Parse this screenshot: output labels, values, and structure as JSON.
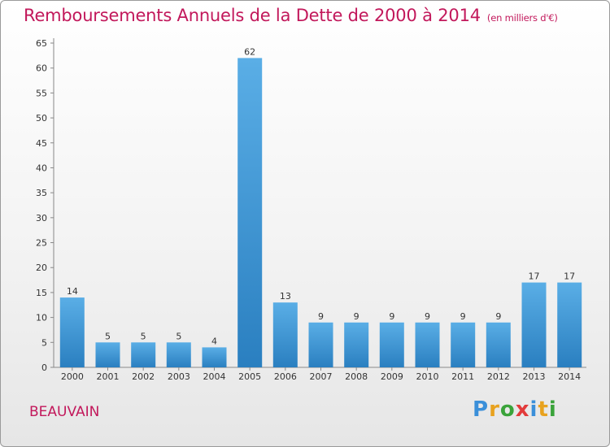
{
  "header": {
    "title": "Remboursements Annuels de la Dette de 2000 à 2014",
    "subtitle": "(en milliers d'€)"
  },
  "footer": {
    "city": "BEAUVAIN",
    "logo_text": "Proxiti"
  },
  "colors": {
    "title": "#c2185b",
    "bar_light": "#5aaee6",
    "bar_dark": "#2a7fc0",
    "logo_letters": [
      "#3a8fd9",
      "#e8a21f",
      "#3aa33a",
      "#e23b3b",
      "#3a8fd9",
      "#e8a21f",
      "#3aa33a"
    ]
  },
  "chart_data": {
    "type": "bar",
    "categories": [
      "2000",
      "2001",
      "2002",
      "2003",
      "2004",
      "2005",
      "2006",
      "2007",
      "2008",
      "2009",
      "2010",
      "2011",
      "2012",
      "2013",
      "2014"
    ],
    "values": [
      14,
      5,
      5,
      5,
      4,
      62,
      13,
      9,
      9,
      9,
      9,
      9,
      9,
      17,
      17
    ],
    "title": "Remboursements Annuels de la Dette de 2000 à 2014",
    "ylim": [
      0,
      65
    ],
    "yticks": [
      0,
      5,
      10,
      15,
      20,
      25,
      30,
      35,
      40,
      45,
      50,
      55,
      60,
      65
    ],
    "grid": false,
    "data_labels": true
  }
}
